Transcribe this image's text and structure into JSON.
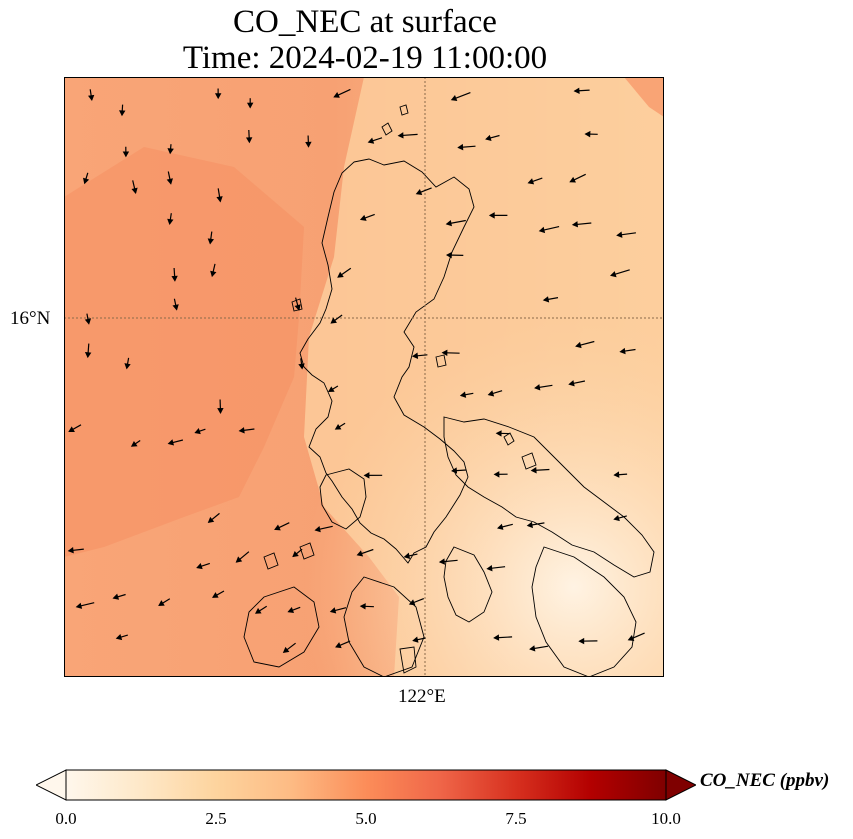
{
  "title": {
    "line1": "CO_NEC at surface",
    "line2": "Time: 2024-02-19 11:00:00"
  },
  "axes": {
    "lat_tick": "16°N",
    "lon_tick": "122°E"
  },
  "colorbar": {
    "label": "CO_NEC (ppbv)",
    "ticks": [
      "0.0",
      "2.5",
      "5.0",
      "7.5",
      "10.0"
    ],
    "min": 0,
    "max": 10,
    "colormap": [
      "#fff7ec",
      "#fee8c8",
      "#fdd49e",
      "#fdbb84",
      "#fc8d59",
      "#ef6548",
      "#d7301f",
      "#b30000",
      "#7f0000"
    ]
  },
  "colors": {
    "coastline": "#000000",
    "gridline": "#8a6a4a",
    "wind_arrow": "#000000"
  }
}
